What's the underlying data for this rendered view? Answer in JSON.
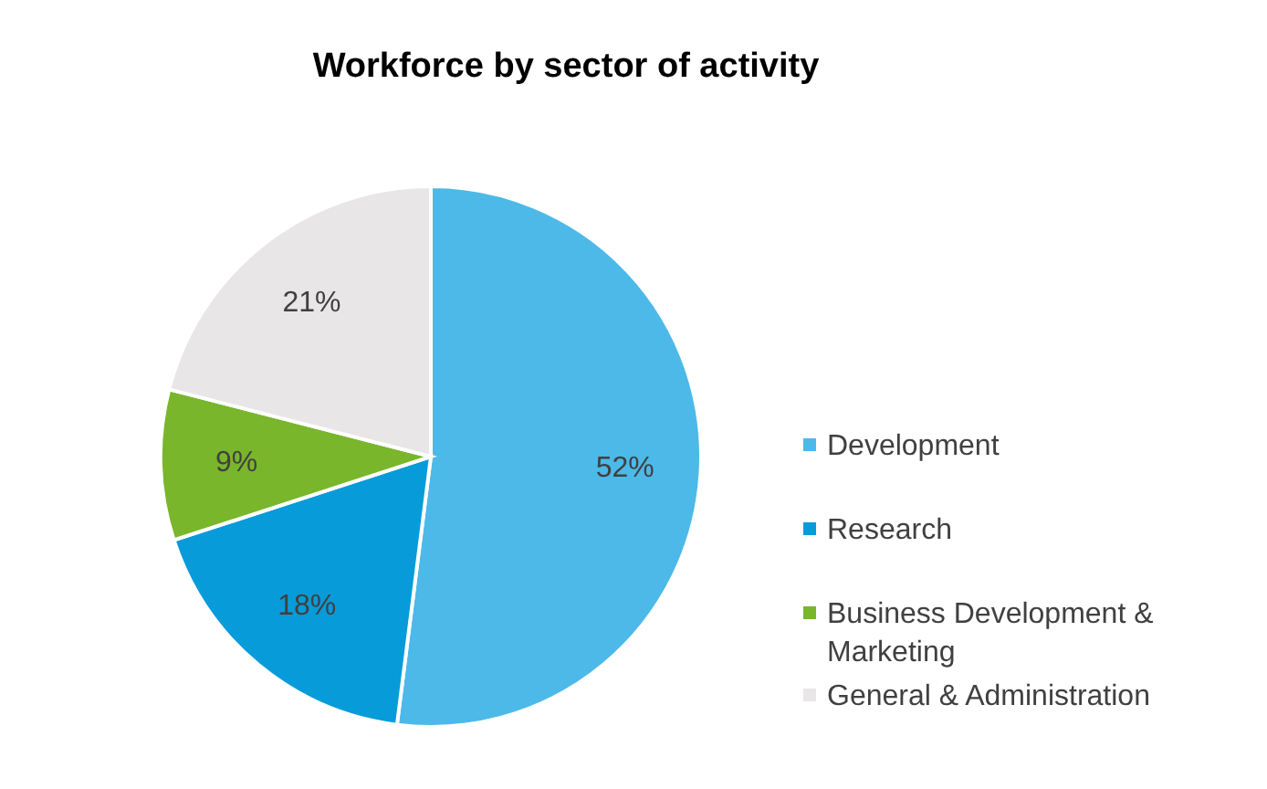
{
  "chart_data": {
    "type": "pie",
    "title": "Workforce by sector of activity",
    "categories": [
      "Development",
      "Research",
      "Business Development & Marketing",
      "General & Administration"
    ],
    "values": [
      52,
      18,
      9,
      21
    ],
    "colors": [
      "#4cb9e9",
      "#079bd9",
      "#79b62b",
      "#e8e6e6"
    ],
    "value_labels": [
      "52%",
      "18%",
      "9%",
      "21%"
    ],
    "legend": "right"
  }
}
